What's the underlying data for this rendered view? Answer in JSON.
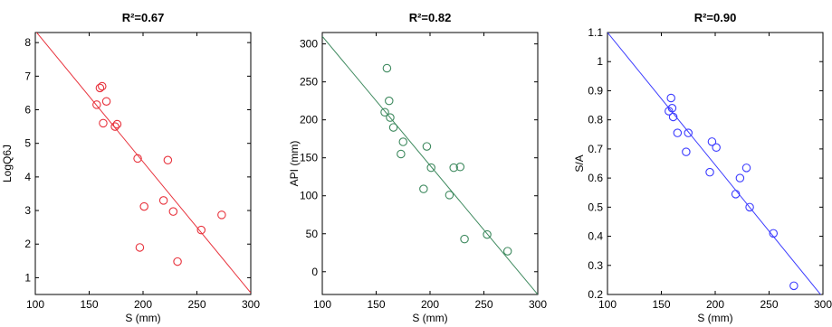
{
  "colors": {
    "red": "#e8323c",
    "green": "#3f8a5f",
    "blue": "#3b3bff"
  },
  "chart_data": [
    {
      "type": "scatter",
      "title": "R²=0.67",
      "xlabel": "S (mm)",
      "ylabel": "LogQ6J",
      "xlim": [
        100,
        300
      ],
      "ylim": [
        0.5,
        8.3
      ],
      "xticks": [
        100,
        150,
        200,
        250,
        300
      ],
      "yticks": [
        1,
        2,
        3,
        4,
        5,
        6,
        7,
        8
      ],
      "color": "#e8323c",
      "points": [
        {
          "x": 157,
          "y": 6.15
        },
        {
          "x": 160,
          "y": 6.65
        },
        {
          "x": 162,
          "y": 6.7
        },
        {
          "x": 163,
          "y": 5.6
        },
        {
          "x": 166,
          "y": 6.25
        },
        {
          "x": 174,
          "y": 5.5
        },
        {
          "x": 176,
          "y": 5.57
        },
        {
          "x": 195,
          "y": 4.55
        },
        {
          "x": 197,
          "y": 1.9
        },
        {
          "x": 201,
          "y": 3.12
        },
        {
          "x": 219,
          "y": 3.3
        },
        {
          "x": 223,
          "y": 4.5
        },
        {
          "x": 228,
          "y": 2.97
        },
        {
          "x": 232,
          "y": 1.48
        },
        {
          "x": 254,
          "y": 2.42
        },
        {
          "x": 273,
          "y": 2.87
        }
      ],
      "fit_line": {
        "x": [
          100,
          300
        ],
        "y": [
          8.35,
          0.55
        ]
      }
    },
    {
      "type": "scatter",
      "title": "R²=0.82",
      "xlabel": "S (mm)",
      "ylabel": "API (mm)",
      "xlim": [
        100,
        300
      ],
      "ylim": [
        -30,
        315
      ],
      "xticks": [
        100,
        150,
        200,
        250,
        300
      ],
      "yticks": [
        0,
        50,
        100,
        150,
        200,
        250,
        300
      ],
      "color": "#3f8a5f",
      "points": [
        {
          "x": 158,
          "y": 210
        },
        {
          "x": 160,
          "y": 268
        },
        {
          "x": 162,
          "y": 225
        },
        {
          "x": 163,
          "y": 203
        },
        {
          "x": 166,
          "y": 190
        },
        {
          "x": 173,
          "y": 155
        },
        {
          "x": 175,
          "y": 171
        },
        {
          "x": 194,
          "y": 109
        },
        {
          "x": 197,
          "y": 165
        },
        {
          "x": 201,
          "y": 137
        },
        {
          "x": 218,
          "y": 101
        },
        {
          "x": 222,
          "y": 137
        },
        {
          "x": 228,
          "y": 138
        },
        {
          "x": 232,
          "y": 43
        },
        {
          "x": 253,
          "y": 49
        },
        {
          "x": 272,
          "y": 27
        }
      ],
      "fit_line": {
        "x": [
          100,
          300
        ],
        "y": [
          310,
          -30
        ]
      }
    },
    {
      "type": "scatter",
      "title": "R²=0.90",
      "xlabel": "S (mm)",
      "ylabel": "S/A",
      "xlim": [
        100,
        300
      ],
      "ylim": [
        0.2,
        1.1
      ],
      "xticks": [
        100,
        150,
        200,
        250,
        300
      ],
      "yticks": [
        0.2,
        0.3,
        0.4,
        0.5,
        0.6,
        0.7,
        0.8,
        0.9,
        1,
        1.1
      ],
      "color": "#3b3bff",
      "points": [
        {
          "x": 157,
          "y": 0.83
        },
        {
          "x": 159,
          "y": 0.875
        },
        {
          "x": 160,
          "y": 0.84
        },
        {
          "x": 161,
          "y": 0.81
        },
        {
          "x": 165,
          "y": 0.755
        },
        {
          "x": 173,
          "y": 0.69
        },
        {
          "x": 175,
          "y": 0.755
        },
        {
          "x": 195,
          "y": 0.62
        },
        {
          "x": 197,
          "y": 0.725
        },
        {
          "x": 201,
          "y": 0.705
        },
        {
          "x": 219,
          "y": 0.545
        },
        {
          "x": 223,
          "y": 0.6
        },
        {
          "x": 229,
          "y": 0.635
        },
        {
          "x": 232,
          "y": 0.5
        },
        {
          "x": 254,
          "y": 0.41
        },
        {
          "x": 273,
          "y": 0.23
        }
      ],
      "fit_line": {
        "x": [
          100,
          300
        ],
        "y": [
          1.1,
          0.19
        ]
      }
    }
  ]
}
